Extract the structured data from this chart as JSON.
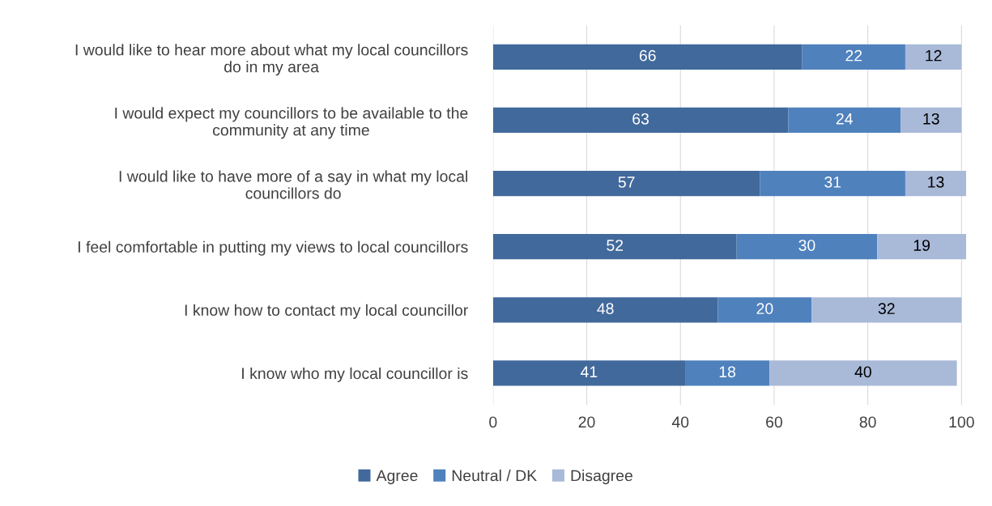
{
  "chart_data": {
    "type": "bar",
    "orientation": "horizontal",
    "stacked": true,
    "categories": [
      "I would like to hear more about what my local councillors do in my area",
      "I would expect my councillors to be available to the community at any time",
      "I would like to have more of a say in what my local councillors do",
      "I feel comfortable in putting my views to local councillors",
      "I know how to contact my local councillor",
      "I know who my local councillor is"
    ],
    "series": [
      {
        "name": "Agree",
        "color": "#41699b",
        "values": [
          66,
          63,
          57,
          52,
          48,
          41
        ]
      },
      {
        "name": "Neutral / DK",
        "color": "#4f81bd",
        "values": [
          22,
          24,
          31,
          30,
          20,
          18
        ]
      },
      {
        "name": "Disagree",
        "color": "#a9b9d8",
        "values": [
          12,
          13,
          13,
          19,
          32,
          40
        ]
      }
    ],
    "xlim": [
      0,
      101
    ],
    "xticks": [
      0,
      20,
      40,
      60,
      80,
      100
    ],
    "grid": "x",
    "legend": "bottom",
    "data_labels": true
  }
}
